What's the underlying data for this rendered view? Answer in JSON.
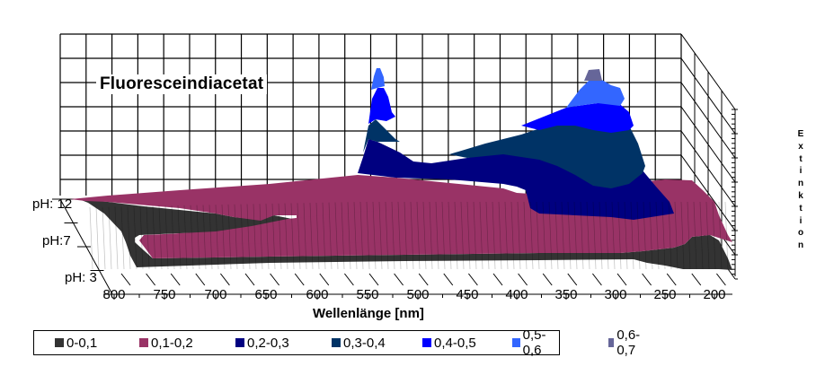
{
  "chart_data": {
    "type": "surface3d",
    "title": "Fluoresceindiacetat",
    "xlabel": "Wellenlänge [nm]",
    "ylabel": "pH",
    "zlabel": "Extinktion",
    "x_ticks": [
      "800",
      "750",
      "700",
      "650",
      "600",
      "550",
      "500",
      "450",
      "400",
      "350",
      "300",
      "250",
      "200"
    ],
    "x_range": [
      800,
      200
    ],
    "y_ticks": [
      "pH: 12",
      "pH:7",
      "pH: 3"
    ],
    "z_range": [
      0,
      0.7
    ],
    "z_tick_labels_shown": false,
    "grid": true,
    "legend_position": "bottom",
    "series": [
      {
        "name": "0-0,1",
        "range": [
          0,
          0.1
        ],
        "color": "#333333"
      },
      {
        "name": "0,1-0,2",
        "range": [
          0.1,
          0.2
        ],
        "color": "#993366"
      },
      {
        "name": "0,2-0,3",
        "range": [
          0.2,
          0.3
        ],
        "color": "#000080"
      },
      {
        "name": "0,3-0,4",
        "range": [
          0.3,
          0.4
        ],
        "color": "#003366"
      },
      {
        "name": "0,4-0,5",
        "range": [
          0.4,
          0.5
        ],
        "color": "#0000FF"
      },
      {
        "name": "0,5-0,6",
        "range": [
          0.5,
          0.6
        ],
        "color": "#3366FF"
      },
      {
        "name": "0,6-0,7",
        "range": [
          0.6,
          0.7
        ],
        "color": "#666699"
      }
    ],
    "features": [
      {
        "label": "sharp peak",
        "wavelength_nm": 540,
        "ph": 12,
        "extinction_approx": 0.6
      },
      {
        "label": "broad peak",
        "wavelength_nm": 330,
        "ph": 12,
        "extinction_approx": 0.65
      },
      {
        "label": "rise at low wavelength",
        "wavelength_nm": 210,
        "ph": 3,
        "extinction_approx": 0.1
      }
    ]
  },
  "ph_labels": [
    "pH: 12",
    "pH:7",
    "pH: 3"
  ],
  "x_labels": [
    "800",
    "750",
    "700",
    "650",
    "600",
    "550",
    "500",
    "450",
    "400",
    "350",
    "300",
    "250",
    "200"
  ],
  "x_axis_title": "Wellenlänge [nm]",
  "z_axis_title": [
    "E",
    "x",
    "t",
    "i",
    "n",
    "k",
    "t",
    "i",
    "o",
    "n"
  ],
  "title": "Fluoresceindiacetat",
  "legend": [
    {
      "label": "0-0,1",
      "color": "#333333"
    },
    {
      "label": "0,1-0,2",
      "color": "#993366"
    },
    {
      "label": "0,2-0,3",
      "color": "#000080"
    },
    {
      "label": "0,3-0,4",
      "color": "#003366"
    },
    {
      "label": "0,4-0,5",
      "color": "#0000FF"
    },
    {
      "label": "0,5-0,6",
      "color": "#3366FF"
    },
    {
      "label": "0,6-0,7",
      "color": "#666699"
    }
  ]
}
